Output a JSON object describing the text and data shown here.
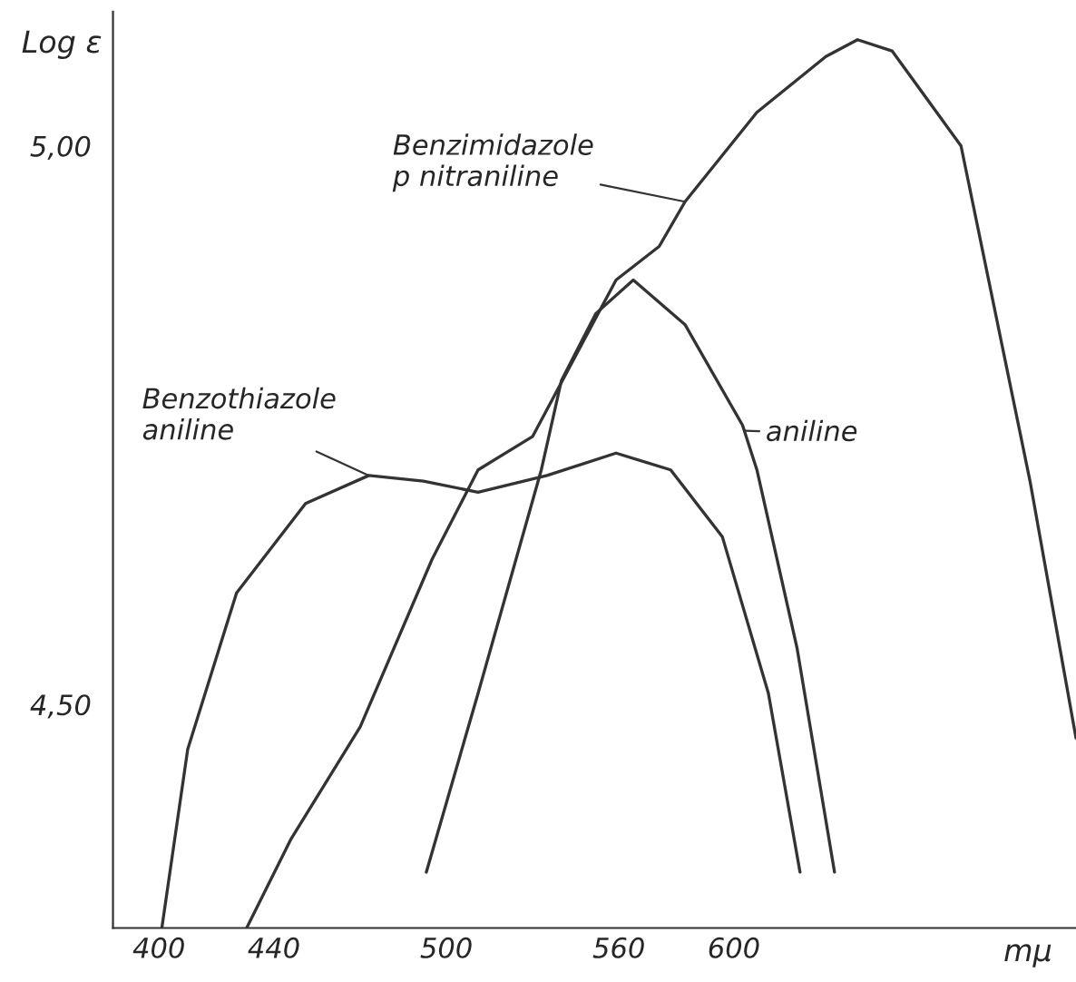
{
  "chart_data": {
    "type": "line",
    "xlabel": "mμ",
    "ylabel": "Log ε",
    "xlim": [
      384,
      719
    ],
    "ylim": [
      4.3,
      5.12
    ],
    "xticks": [
      400,
      440,
      500,
      560,
      600
    ],
    "yticks": [
      {
        "value": 5.0,
        "label": "5,00"
      },
      {
        "value": 4.5,
        "label": "4,50"
      }
    ],
    "grid": false,
    "legend": false,
    "marker": "none",
    "line_style": "solid",
    "series": [
      {
        "color": "#333333",
        "x": [
          430.5,
          446,
          470,
          495,
          511,
          530,
          559,
          574,
          583,
          608,
          632,
          643,
          655,
          679,
          703,
          719
        ],
        "values": [
          4.3,
          4.38,
          4.48,
          4.63,
          4.71,
          4.74,
          4.88,
          4.91,
          4.95,
          5.03,
          5.08,
          5.095,
          5.085,
          5.0,
          4.7,
          4.47
        ]
      },
      {
        "color": "#333333",
        "x": [
          493,
          511,
          533,
          540,
          552,
          565,
          583,
          603,
          608,
          622,
          635
        ],
        "values": [
          4.35,
          4.51,
          4.71,
          4.79,
          4.85,
          4.88,
          4.84,
          4.75,
          4.71,
          4.55,
          4.35
        ]
      },
      {
        "color": "#333333",
        "x": [
          401,
          410,
          427,
          451,
          473,
          492,
          511,
          535,
          559,
          578,
          596,
          612,
          623
        ],
        "values": [
          4.3,
          4.46,
          4.6,
          4.68,
          4.705,
          4.7,
          4.69,
          4.705,
          4.725,
          4.71,
          4.65,
          4.51,
          4.35
        ]
      }
    ],
    "annotations": [
      {
        "text": "Benzimidazole\np nitraniline",
        "x": 583,
        "y": 4.95
      },
      {
        "text": "Benzothiazole\naniline",
        "x": 473,
        "y": 4.705
      },
      {
        "text": "aniline",
        "x": 604,
        "y": 4.745
      }
    ]
  }
}
